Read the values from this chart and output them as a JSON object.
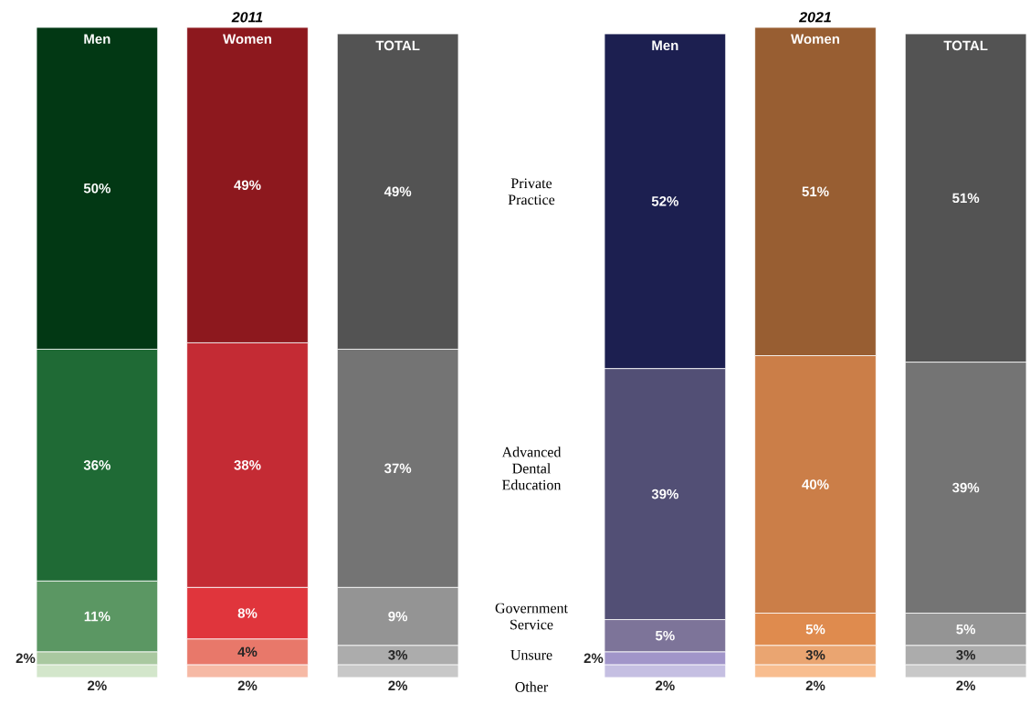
{
  "chart_data": [
    {
      "type": "bar",
      "title": "2011",
      "stacked": true,
      "tick_labels": "x",
      "ylim": [
        0,
        101
      ],
      "categories": [
        "Men",
        "Women",
        "TOTAL"
      ],
      "series": [
        {
          "name": "Other",
          "colors": [
            "#d3e6cb",
            "#f6b9a5",
            "#c8c8c8"
          ],
          "values": [
            2,
            2,
            2
          ],
          "value_labels": [
            "2%",
            "2%",
            "2%"
          ]
        },
        {
          "name": "Unsure",
          "colors": [
            "#a9c8a0",
            "#e8786a",
            "#acacac"
          ],
          "values": [
            2,
            4,
            3
          ],
          "value_labels": [
            "2%",
            "4%",
            "3%"
          ]
        },
        {
          "name": "Government Service",
          "colors": [
            "#5b9763",
            "#e0353c",
            "#949494"
          ],
          "values": [
            11,
            8,
            9
          ],
          "value_labels": [
            "11%",
            "8%",
            "9%"
          ]
        },
        {
          "name": "Advanced Dental Education",
          "colors": [
            "#1f6a35",
            "#c42b34",
            "#747474"
          ],
          "values": [
            36,
            38,
            37
          ],
          "value_labels": [
            "36%",
            "38%",
            "37%"
          ]
        },
        {
          "name": "Private Practice",
          "colors": [
            "#023814",
            "#8d181e",
            "#535353"
          ],
          "values": [
            50,
            49,
            49
          ],
          "value_labels": [
            "50%",
            "49%",
            "49%"
          ]
        }
      ]
    },
    {
      "type": "bar",
      "title": "2021",
      "stacked": true,
      "tick_labels": "x",
      "ylim": [
        0,
        101
      ],
      "categories": [
        "Men",
        "Women",
        "TOTAL"
      ],
      "series": [
        {
          "colors": [
            "#c5bfe2",
            "#f8bd8f",
            "#c8c8c8"
          ],
          "values": [
            2,
            2,
            2
          ],
          "value_labels": [
            "2%",
            "2%",
            "2%"
          ]
        },
        {
          "colors": [
            "#a195c9",
            "#eaa571",
            "#acacac"
          ],
          "values": [
            2,
            3,
            3
          ],
          "value_labels": [
            "2%",
            "3%",
            "3%"
          ]
        },
        {
          "colors": [
            "#7d7499",
            "#df8b4e",
            "#949494"
          ],
          "values": [
            5,
            5,
            5
          ],
          "value_labels": [
            "5%",
            "5%",
            "5%"
          ]
        },
        {
          "colors": [
            "#524f75",
            "#cb7e48",
            "#747474"
          ],
          "values": [
            39,
            40,
            39
          ],
          "value_labels": [
            "39%",
            "40%",
            "39%"
          ]
        },
        {
          "colors": [
            "#1c1f50",
            "#985e32",
            "#535353"
          ],
          "values": [
            52,
            51,
            51
          ],
          "value_labels": [
            "52%",
            "51%",
            "51%"
          ]
        }
      ]
    }
  ]
}
